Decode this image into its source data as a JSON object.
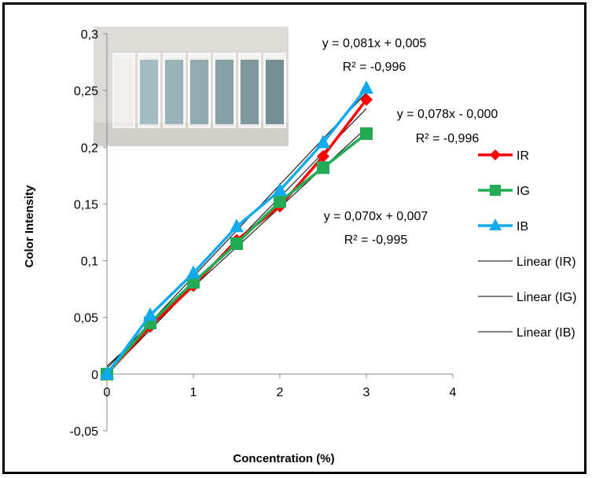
{
  "chart_data": {
    "type": "line",
    "title": "",
    "xlabel": "Concentration (%)",
    "ylabel": "Color Intensity",
    "xlim": [
      0,
      4
    ],
    "ylim": [
      -0.05,
      0.3
    ],
    "x_ticks": [
      "0",
      "1",
      "2",
      "3",
      "4"
    ],
    "y_ticks": [
      "-0,05",
      "0",
      "0,05",
      "0,1",
      "0,15",
      "0,2",
      "0,25",
      "0,3"
    ],
    "x": [
      0,
      0.5,
      1,
      1.5,
      2,
      2.5,
      3
    ],
    "series": [
      {
        "name": "IR",
        "color": "#ff0000",
        "marker": "diamond",
        "values": [
          0,
          0.042,
          0.078,
          0.118,
          0.148,
          0.192,
          0.242
        ]
      },
      {
        "name": "IG",
        "color": "#22aa55",
        "marker": "square",
        "values": [
          0,
          0.045,
          0.081,
          0.115,
          0.152,
          0.182,
          0.212
        ]
      },
      {
        "name": "IB",
        "color": "#11aaee",
        "marker": "triangle",
        "values": [
          0,
          0.052,
          0.089,
          0.13,
          0.162,
          0.204,
          0.252
        ]
      }
    ],
    "trendlines": [
      {
        "name": "Linear (IR)",
        "color": "#000000",
        "slope": 0.081,
        "intercept": 0.005,
        "x_range": [
          0,
          3
        ]
      },
      {
        "name": "Linear (IG)",
        "color": "#000000",
        "slope": 0.07,
        "intercept": 0.007,
        "x_range": [
          0,
          3
        ]
      },
      {
        "name": "Linear (IB)",
        "color": "#000000",
        "slope": 0.078,
        "intercept": 0.0,
        "x_range": [
          0,
          3
        ]
      }
    ],
    "annotations": [
      {
        "line1": "y = 0,081x + 0,005",
        "line2": "R² =  -0,996"
      },
      {
        "line1": "y = 0,078x - 0,000",
        "line2": "R² = -0,996"
      },
      {
        "line1": "y = 0,070x + 0,007",
        "line2": "R² =  -0,995"
      }
    ],
    "inset_photo": {
      "vials": 7,
      "liquid_color": "#a8c2c6"
    },
    "legend_placement": "right",
    "grid": false
  }
}
